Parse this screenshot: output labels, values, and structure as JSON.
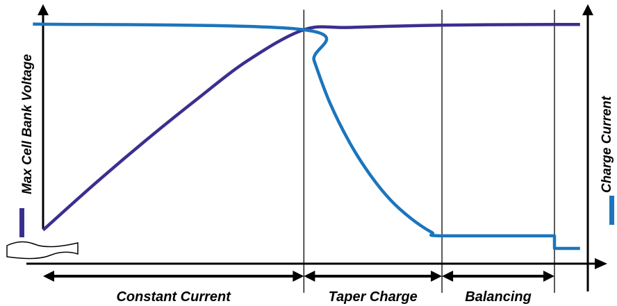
{
  "chart_data": {
    "type": "line",
    "title": "",
    "ylabel_left": "Max Cell Bank Voltage",
    "ylabel_right": "Charge Current",
    "phases": [
      {
        "label": "Constant Current",
        "start": 0.0,
        "end": 0.51
      },
      {
        "label": "Taper Charge",
        "start": 0.51,
        "end": 0.78
      },
      {
        "label": "Balancing",
        "start": 0.78,
        "end": 1.0
      }
    ],
    "xlim": [
      0,
      1.05
    ],
    "ylim": [
      0,
      1
    ],
    "grid": false,
    "series": [
      {
        "name": "Max Cell Bank Voltage",
        "color": "#3a2f8f",
        "x": [
          0.0,
          0.1,
          0.2,
          0.3,
          0.4,
          0.51,
          0.6,
          0.78,
          1.0,
          1.05
        ],
        "y": [
          0.08,
          0.28,
          0.47,
          0.65,
          0.82,
          0.955,
          0.965,
          0.975,
          0.978,
          0.978
        ]
      },
      {
        "name": "Charge Current",
        "color": "#1b75bc",
        "x": [
          -0.02,
          0.51,
          0.53,
          0.56,
          0.6,
          0.64,
          0.68,
          0.72,
          0.76,
          0.78,
          1.0,
          1.0,
          1.05
        ],
        "y": [
          0.98,
          0.955,
          0.82,
          0.64,
          0.46,
          0.32,
          0.21,
          0.13,
          0.07,
          0.055,
          0.055,
          0.0,
          0.0
        ]
      }
    ]
  }
}
